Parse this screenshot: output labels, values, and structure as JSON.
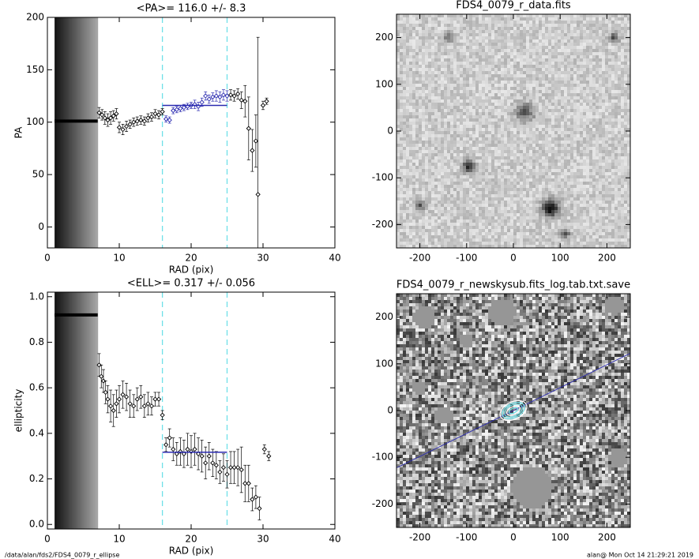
{
  "chart_data": [
    {
      "type": "scatter",
      "title": "<PA>= 116.0 +/-   8.3",
      "x_label": "RAD (pix)",
      "y_label": "PA",
      "xlim": [
        0,
        40
      ],
      "ylim": [
        -20,
        200
      ],
      "xticks": [
        0,
        10,
        20,
        30,
        40
      ],
      "yticks": [
        0,
        50,
        100,
        150,
        200
      ],
      "vlines": [
        16,
        25
      ],
      "vline_color": "#6ee0e8",
      "inner_line": {
        "x": [
          1,
          7
        ],
        "value": 101
      },
      "mean_line": {
        "x": [
          16,
          25
        ],
        "value": 116.0,
        "color": "#2a2ab0"
      },
      "series": [
        {
          "color": "#000000",
          "x": [
            7.2,
            7.6,
            8.0,
            8.4,
            8.8,
            9.2,
            9.6,
            10.0,
            10.5,
            11.0,
            11.5,
            12.0,
            12.5,
            13.0,
            13.5,
            14.0,
            14.5,
            15.0,
            15.5,
            16.0,
            25.5,
            26.0,
            26.5,
            27.0,
            27.5,
            28.0,
            28.5,
            29.0,
            29.3,
            30.0,
            30.5
          ],
          "values": [
            109,
            107,
            104,
            102,
            104,
            106,
            108,
            95,
            93,
            96,
            98,
            100,
            101,
            102,
            101,
            104,
            105,
            108,
            107,
            110,
            126,
            125,
            127,
            121,
            120,
            94,
            73,
            82,
            31,
            116,
            120
          ],
          "errors": [
            5,
            5,
            6,
            6,
            6,
            5,
            5,
            5,
            5,
            5,
            4,
            4,
            4,
            4,
            4,
            4,
            4,
            4,
            4,
            3,
            5,
            5,
            5,
            8,
            15,
            30,
            20,
            25,
            150,
            4,
            3
          ]
        },
        {
          "color": "#2a2ab0",
          "x": [
            16.5,
            17.0,
            17.5,
            18.0,
            18.5,
            19.0,
            19.5,
            20.0,
            20.5,
            21.0,
            21.5,
            22.0,
            22.5,
            23.0,
            23.5,
            24.0,
            24.5,
            25.0
          ],
          "values": [
            103,
            102,
            111,
            112,
            113,
            114,
            115,
            116,
            117,
            115,
            119,
            125,
            122,
            124,
            125,
            124,
            126,
            125
          ],
          "errors": [
            3,
            3,
            3,
            3,
            3,
            3,
            3,
            3,
            4,
            4,
            4,
            4,
            4,
            4,
            5,
            5,
            5,
            5
          ]
        }
      ]
    },
    {
      "type": "scatter",
      "title": "<ELL>= 0.317 +/-  0.056",
      "x_label": "RAD (pix)",
      "y_label": "ellipticity",
      "xlim": [
        0,
        40
      ],
      "ylim": [
        -0.02,
        1.02
      ],
      "xticks": [
        0,
        10,
        20,
        30,
        40
      ],
      "yticks": [
        {
          "value": 0,
          "label": "0.0"
        },
        {
          "value": 0.2,
          "label": "0.2"
        },
        {
          "value": 0.4,
          "label": "0.4"
        },
        {
          "value": 0.6,
          "label": "0.6"
        },
        {
          "value": 0.8,
          "label": "0.8"
        },
        {
          "value": 1,
          "label": "1.0"
        }
      ],
      "vlines": [
        16,
        25
      ],
      "vline_color": "#6ee0e8",
      "inner_line": {
        "x": [
          1,
          7
        ],
        "value": 0.92
      },
      "mean_line": {
        "x": [
          16,
          25
        ],
        "value": 0.317,
        "color": "#2a2ab0"
      },
      "series": [
        {
          "color": "#000000",
          "x": [
            7.2,
            7.5,
            7.8,
            8.1,
            8.4,
            8.8,
            9.2,
            9.6,
            10.0,
            10.5,
            11.0,
            11.5,
            12.0,
            12.5,
            13.0,
            13.5,
            14.0,
            14.5,
            15.0,
            15.5,
            16.0,
            16.5,
            17.0,
            17.5,
            18.0,
            18.5,
            19.0,
            19.5,
            20.0,
            20.5,
            21.0,
            21.5,
            22.0,
            22.5,
            23.0,
            23.5,
            24.0,
            24.5,
            25.0,
            25.5,
            26.0,
            26.5,
            27.0,
            27.5,
            28.0,
            28.5,
            29.0,
            29.5,
            30.2,
            30.8
          ],
          "values": [
            0.7,
            0.65,
            0.63,
            0.58,
            0.55,
            0.52,
            0.5,
            0.53,
            0.55,
            0.57,
            0.56,
            0.53,
            0.52,
            0.55,
            0.56,
            0.52,
            0.53,
            0.52,
            0.55,
            0.55,
            0.48,
            0.35,
            0.38,
            0.33,
            0.31,
            0.32,
            0.31,
            0.33,
            0.32,
            0.33,
            0.31,
            0.3,
            0.27,
            0.3,
            0.27,
            0.26,
            0.23,
            0.25,
            0.22,
            0.25,
            0.25,
            0.25,
            0.24,
            0.18,
            0.18,
            0.11,
            0.12,
            0.07,
            0.33,
            0.3
          ],
          "errors": [
            0.05,
            0.05,
            0.05,
            0.05,
            0.06,
            0.07,
            0.07,
            0.06,
            0.06,
            0.06,
            0.06,
            0.06,
            0.05,
            0.05,
            0.05,
            0.05,
            0.05,
            0.04,
            0.03,
            0.03,
            0.02,
            0.03,
            0.04,
            0.05,
            0.05,
            0.06,
            0.06,
            0.07,
            0.07,
            0.07,
            0.07,
            0.07,
            0.07,
            0.06,
            0.06,
            0.06,
            0.05,
            0.06,
            0.06,
            0.07,
            0.07,
            0.08,
            0.1,
            0.08,
            0.08,
            0.05,
            0.05,
            0.05,
            0.02,
            0.02
          ]
        }
      ]
    },
    {
      "type": "image",
      "title": "FDS4_0079_r_data.fits",
      "xlim": [
        -250,
        250
      ],
      "ylim": [
        -250,
        250
      ],
      "xticks": [
        -200,
        -100,
        0,
        100,
        200
      ],
      "yticks": [
        -200,
        -100,
        0,
        100,
        200
      ]
    },
    {
      "type": "image",
      "title": "FDS4_0079_r_newskysub.fits_log.tab.txt.save",
      "xlim": [
        -250,
        250
      ],
      "ylim": [
        -250,
        250
      ],
      "xticks": [
        -200,
        -100,
        0,
        100,
        200
      ],
      "yticks": [
        -200,
        -100,
        0,
        100,
        200
      ]
    }
  ],
  "footer": {
    "path": "/data/alan/fds2/FDS4_0079_r_ellipse",
    "stamp": "alan@  Mon Oct 14 21:29:21 2019"
  }
}
